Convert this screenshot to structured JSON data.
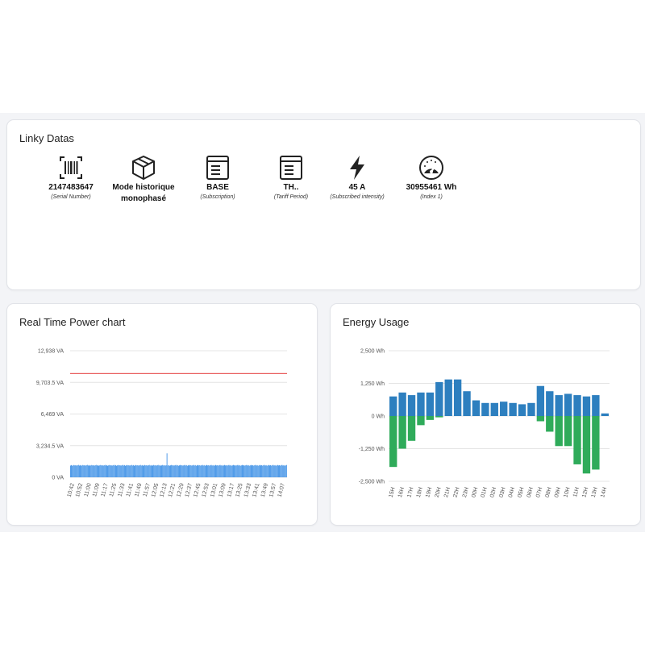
{
  "linky": {
    "title": "Linky Datas",
    "items": [
      {
        "icon": "barcode-icon",
        "value": "2147483647",
        "caption": "(Serial Number)"
      },
      {
        "icon": "box-icon",
        "value": "Mode historique monophasé",
        "caption": ""
      },
      {
        "icon": "document-icon",
        "value": "BASE",
        "caption": "(Subscription)"
      },
      {
        "icon": "document-icon",
        "value": "TH..",
        "caption": "(Tariff Period)"
      },
      {
        "icon": "lightning-icon",
        "value": "45 A",
        "caption": "(Subscribed intensity)"
      },
      {
        "icon": "gauge-icon",
        "value": "30955461 Wh",
        "caption": "(Index 1)"
      }
    ]
  },
  "power_chart": {
    "title": "Real Time Power chart"
  },
  "energy_chart": {
    "title": "Energy Usage"
  },
  "colors": {
    "power_bar": "#3b8fe6",
    "limit_line": "#e85c5c",
    "energy_blue": "#2d7fbf",
    "energy_green": "#2fab5a"
  },
  "chart_data": [
    {
      "type": "bar",
      "title": "Real Time Power chart",
      "y_ticks": [
        "0 VA",
        "3,234.5 VA",
        "6,469 VA",
        "9,703.5 VA",
        "12,938 VA"
      ],
      "ylim": [
        0,
        12938
      ],
      "x_ticks": [
        "10:42",
        "10:52",
        "11:00",
        "11:09",
        "11:17",
        "11:25",
        "11:33",
        "11:41",
        "11:49",
        "11:57",
        "12:05",
        "12:13",
        "12:21",
        "12:29",
        "12:37",
        "12:45",
        "12:53",
        "13:01",
        "13:09",
        "13:17",
        "13:25",
        "13:33",
        "13:41",
        "13:49",
        "13:57",
        "14:07"
      ],
      "series": [
        {
          "values": [
            1200,
            1250,
            1180,
            1220,
            1260,
            1210,
            1240,
            1190,
            1230,
            1270,
            1200,
            1250,
            1180,
            1220,
            1260,
            1210,
            1240,
            1190,
            1230,
            1270,
            1200,
            1250,
            1180,
            1220,
            1260,
            1210,
            1240,
            1190,
            1230,
            1270,
            1200,
            1250,
            1180,
            1220,
            1260,
            1210,
            1240,
            1190,
            1230,
            1270,
            1200,
            1250,
            1180,
            1220,
            1260,
            1210,
            1240,
            1190,
            1230,
            1270,
            1200,
            1250,
            1180,
            1220,
            1260,
            1210,
            1240,
            1190,
            1230,
            1270,
            1200,
            1250,
            1180,
            1220,
            1260,
            1210,
            1240,
            1190,
            1230,
            1270,
            1200,
            1250,
            1180,
            1220,
            1260,
            1210,
            1240,
            1190,
            1230,
            1270,
            1200,
            1250,
            1180,
            1220,
            1260,
            1210,
            1240,
            1190,
            1230,
            1270,
            1200,
            1250,
            1180,
            1220,
            1260,
            1210,
            1240,
            1190,
            1230,
            1270,
            1200,
            1250,
            1180,
            1220,
            1260,
            1210,
            1240,
            1190,
            1230,
            2450,
            1200,
            1250,
            1180,
            1220,
            1260,
            1210,
            1240,
            1190,
            1230,
            1270,
            1200,
            1250,
            1180,
            1220,
            1260,
            1210,
            1240,
            1190,
            1230,
            1270,
            1200,
            1250,
            1180,
            1220,
            1260,
            1210,
            1240,
            1190,
            1230,
            1270,
            1200,
            1250,
            1180,
            1220,
            1260,
            1210,
            1240,
            1190,
            1230,
            1270,
            1200,
            1250,
            1180,
            1220,
            1260,
            1210,
            1240,
            1190,
            1230,
            1270,
            1200,
            1250,
            1180,
            1220,
            1260,
            1210,
            1240,
            1190,
            1230,
            1270,
            1200,
            1250,
            1180,
            1220,
            1260,
            1210,
            1240,
            1190,
            1230,
            1270,
            1200,
            1250,
            1180,
            1220,
            1260,
            1210,
            1240,
            1190,
            1230,
            1270,
            1200,
            1250,
            1180,
            1220,
            1260,
            1210,
            1240,
            1190,
            1230,
            1270,
            1200,
            1250,
            1180,
            1220,
            1260,
            1210,
            1240,
            1190,
            1230,
            1270,
            1200,
            1250,
            1180,
            1220,
            1260,
            1210,
            1240,
            1190,
            1230,
            1270,
            1200,
            1250,
            1180,
            1220,
            1260,
            1210,
            1240,
            1190,
            1230,
            1270,
            1200,
            1250,
            1180,
            1220,
            1260,
            1210,
            1240,
            1190,
            1230,
            1270,
            1200,
            1250,
            1180,
            1220,
            1260
          ]
        }
      ],
      "reference_line": 10600,
      "grid": true
    },
    {
      "type": "bar",
      "title": "Energy Usage",
      "y_ticks": [
        "2,500 Wh",
        "1,250 Wh",
        "0 Wh",
        "-1,250 Wh",
        "-2,500 Wh"
      ],
      "ylim": [
        -2500,
        2500
      ],
      "categories": [
        "15H",
        "16H",
        "17H",
        "18H",
        "19H",
        "20H",
        "21H",
        "22H",
        "23H",
        "00H",
        "01H",
        "02H",
        "03H",
        "04H",
        "05H",
        "06H",
        "07H",
        "08H",
        "09H",
        "10H",
        "11H",
        "12H",
        "13H",
        "14H"
      ],
      "series": [
        {
          "name": "",
          "values": [
            750,
            900,
            800,
            900,
            900,
            1300,
            1400,
            1400,
            950,
            600,
            500,
            500,
            550,
            500,
            450,
            500,
            1150,
            950,
            800,
            850,
            800,
            750,
            800,
            100
          ]
        },
        {
          "name": "",
          "values": [
            -1950,
            -1250,
            -950,
            -350,
            -150,
            -50,
            0,
            0,
            0,
            0,
            0,
            0,
            0,
            0,
            0,
            0,
            -200,
            -600,
            -1150,
            -1150,
            -1850,
            -2200,
            -2050,
            0
          ]
        }
      ],
      "grid": true
    }
  ]
}
